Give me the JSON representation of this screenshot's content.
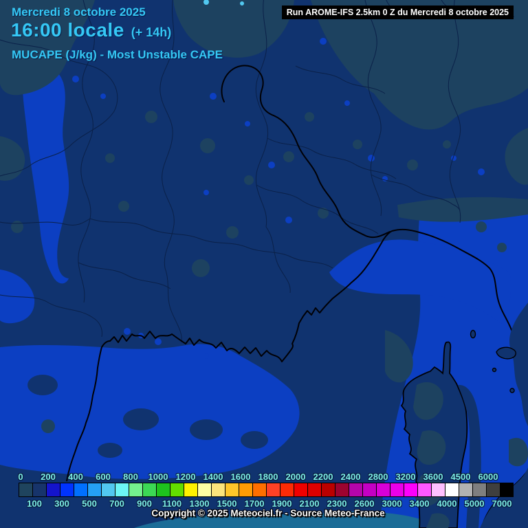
{
  "header": {
    "date": "Mercredi 8 octobre 2025",
    "time": "16:00 locale",
    "offset": "(+ 14h)",
    "parameter": "MUCAPE (J/kg) - Most Unstable CAPE"
  },
  "run_banner": {
    "label": "Run AROME-IFS 2.5km 0 Z du Mercredi 8 octobre 2025"
  },
  "legend": {
    "top_labels": [
      "0",
      "200",
      "400",
      "600",
      "800",
      "1000",
      "1200",
      "1400",
      "1600",
      "1800",
      "2000",
      "2200",
      "2400",
      "2800",
      "3200",
      "3600",
      "4500",
      "6000"
    ],
    "bottom_labels": [
      "100",
      "300",
      "500",
      "700",
      "900",
      "1100",
      "1300",
      "1500",
      "1700",
      "1900",
      "2100",
      "2300",
      "2600",
      "3000",
      "3400",
      "4000",
      "5000",
      "7000"
    ],
    "colors": [
      "#1f445e",
      "#17346b",
      "#1414cc",
      "#0033ff",
      "#0070ff",
      "#25a0f5",
      "#52c8f0",
      "#6cf5f5",
      "#74f08e",
      "#3cd955",
      "#1ec31e",
      "#63dd00",
      "#fff200",
      "#ffffa3",
      "#fce47c",
      "#ffc62a",
      "#ff9c05",
      "#ff6f00",
      "#fe4126",
      "#fb2b06",
      "#f00000",
      "#dd0000",
      "#bb0000",
      "#9d0330",
      "#b505ab",
      "#c400c4",
      "#d800d8",
      "#ea00ea",
      "#fd00fd",
      "#ff58ff",
      "#ffc0ff",
      "#ffffff",
      "#b2b2b2",
      "#7f7f7f",
      "#3f3f3f",
      "#000000"
    ]
  },
  "footer": {
    "copyright": "Copyright © 2025 Meteociel.fr - Source Meteo-France"
  },
  "colors": {
    "header_text": "#35c8f5",
    "run_banner_bg": "#000000",
    "run_banner_text": "#ffffff",
    "legend_label": "#7deee6",
    "copyright_text": "#ffffff",
    "background_navy": "#10336f",
    "cape_0_slate": "#1d4260",
    "cape_200_royal": "#0c3fc2",
    "boundary_line": "#0a2048",
    "coast_line": "#000005",
    "sea_teal_patch": "#1b6c97",
    "cyan_dot": "#52c8f0"
  }
}
